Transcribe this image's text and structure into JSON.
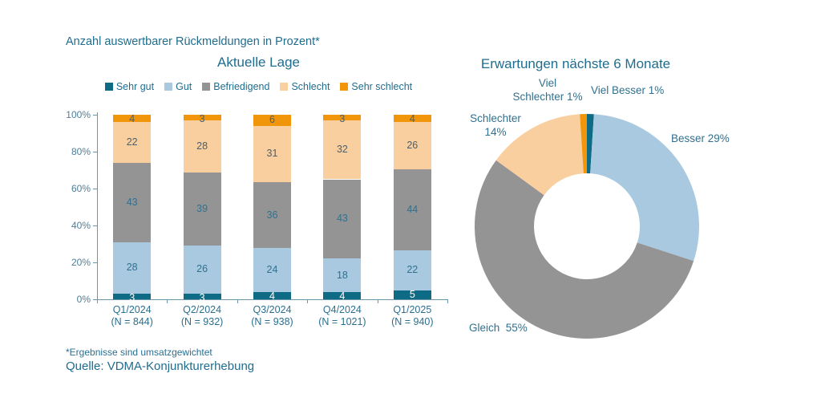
{
  "page": {
    "subtitle": "Anzahl auswertbarer Rückmeldungen in Prozent*",
    "footnote": "*Ergebnisse sind umsatzgewichtet",
    "source": "Quelle: VDMA-Konjunkturerhebung"
  },
  "colors": {
    "text_primary": "#1f6d8e",
    "value_label": "#31708f",
    "axis": "#6d95a9",
    "ytick_label": "#4f7d99"
  },
  "chart_data": [
    {
      "type": "bar",
      "stacked": true,
      "title": "Aktuelle Lage",
      "categories": [
        "Q1/2024",
        "Q2/2024",
        "Q3/2024",
        "Q4/2024",
        "Q1/2025"
      ],
      "category_sublabels": [
        "(N = 844)",
        "(N = 932)",
        "(N = 938)",
        "(N = 1021)",
        "(N = 940)"
      ],
      "series": [
        {
          "name": "Sehr gut",
          "color": "#0e6b85",
          "label_color": "#ffffff",
          "values": [
            3,
            3,
            4,
            4,
            5
          ]
        },
        {
          "name": "Gut",
          "color": "#a8c9e0",
          "label_color": "#31708f",
          "values": [
            28,
            26,
            24,
            18,
            22
          ]
        },
        {
          "name": "Befriedigend",
          "color": "#949494",
          "label_color": "#31708f",
          "values": [
            43,
            39,
            36,
            43,
            44
          ]
        },
        {
          "name": "Schlecht",
          "color": "#f9cfa0",
          "label_color": "#4b5f6b",
          "values": [
            22,
            28,
            31,
            32,
            26
          ]
        },
        {
          "name": "Sehr schlecht",
          "color": "#f1960a",
          "label_color": "#4b5f6b",
          "values": [
            4,
            3,
            6,
            3,
            4
          ]
        }
      ],
      "ylim": [
        0,
        100
      ],
      "yticks": [
        "0%",
        "20%",
        "40%",
        "60%",
        "80%",
        "100%"
      ],
      "legend_position": "top",
      "grid": false
    },
    {
      "type": "pie",
      "donut": true,
      "title": "Erwartungen nächste 6 Monate",
      "slices": [
        {
          "name": "Viel Besser",
          "pct": 1,
          "color": "#0e6b85",
          "label_lines": [
            "Viel Besser 1%"
          ]
        },
        {
          "name": "Besser",
          "pct": 29,
          "color": "#a8c9e0",
          "label_lines": [
            "Besser 29%"
          ]
        },
        {
          "name": "Gleich",
          "pct": 55,
          "color": "#949494",
          "label_lines": [
            "Gleich  55%"
          ]
        },
        {
          "name": "Schlechter",
          "pct": 14,
          "color": "#f9cfa0",
          "label_lines": [
            "Schlechter",
            "14%"
          ]
        },
        {
          "name": "Viel Schlechter",
          "pct": 1,
          "color": "#f1960a",
          "label_lines": [
            "Viel",
            "Schlechter 1%"
          ]
        }
      ],
      "legend_position": "none"
    }
  ]
}
